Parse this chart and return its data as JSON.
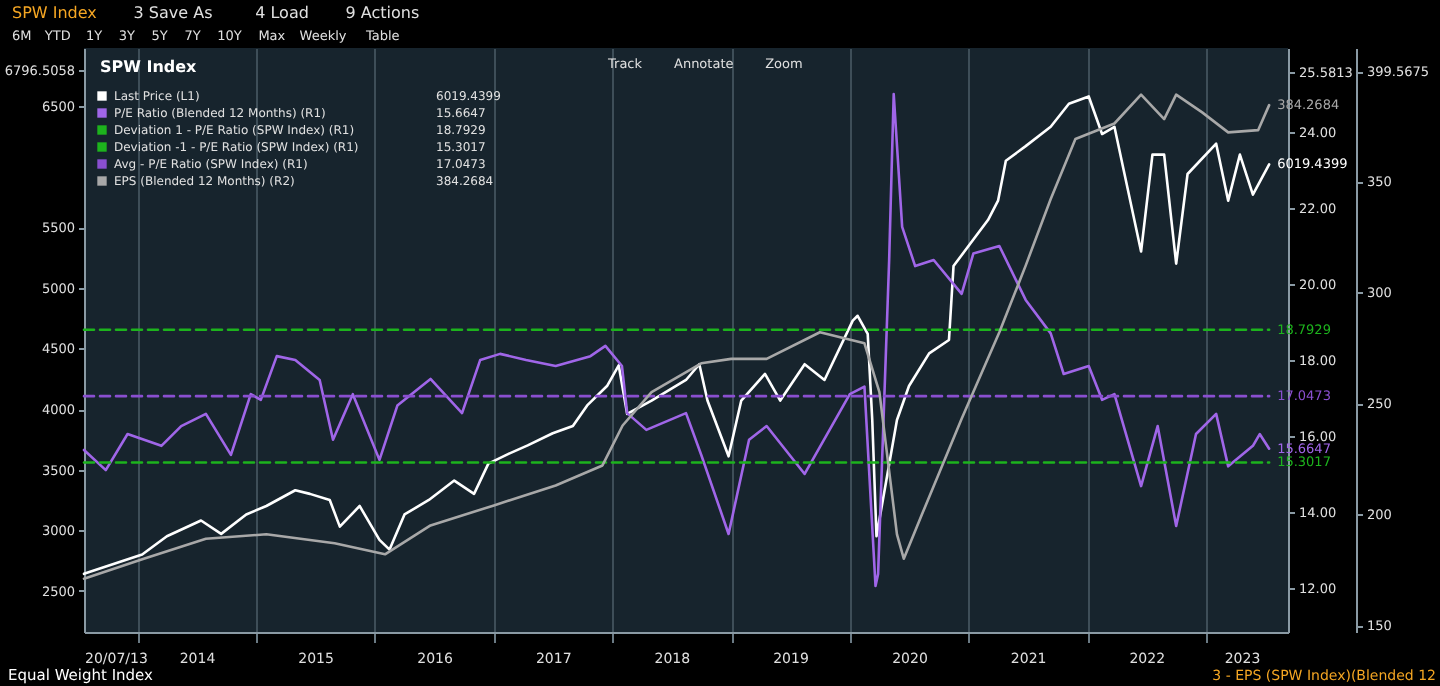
{
  "chart_data": {
    "type": "line",
    "title": "SPW Index",
    "annotations": [
      "SPW Index",
      "3 Save As",
      "4 Load",
      "9 Actions",
      "6M",
      "YTD",
      "1Y",
      "3Y",
      "5Y",
      "7Y",
      "10Y",
      "Max",
      "Weekly",
      "Table",
      "Track",
      "Annotate",
      "Zoom",
      "Equal Weight Index",
      "3 - EPS (SPW Index)(Blended 12"
    ],
    "xlim": [
      "2013-07-20",
      "2023-09-10"
    ],
    "xticks": [
      {
        "value": "2013-07-20",
        "label": "20/07/13"
      },
      {
        "value": "2014-01-01",
        "label": null
      },
      {
        "value": "2014-07-01",
        "label": "2014"
      },
      {
        "value": "2015-01-01",
        "label": null
      },
      {
        "value": "2015-07-01",
        "label": "2015"
      },
      {
        "value": "2016-01-01",
        "label": null
      },
      {
        "value": "2016-07-01",
        "label": "2016"
      },
      {
        "value": "2017-01-01",
        "label": null
      },
      {
        "value": "2017-07-01",
        "label": "2017"
      },
      {
        "value": "2018-01-01",
        "label": null
      },
      {
        "value": "2018-07-01",
        "label": "2018"
      },
      {
        "value": "2019-01-01",
        "label": null
      },
      {
        "value": "2019-07-01",
        "label": "2019"
      },
      {
        "value": "2020-01-01",
        "label": null
      },
      {
        "value": "2020-07-01",
        "label": "2020"
      },
      {
        "value": "2021-01-01",
        "label": null
      },
      {
        "value": "2021-07-01",
        "label": "2021"
      },
      {
        "value": "2022-01-01",
        "label": null
      },
      {
        "value": "2022-07-01",
        "label": "2022"
      },
      {
        "value": "2023-01-01",
        "label": null
      },
      {
        "value": "2023-04-20",
        "label": "2023"
      }
    ],
    "ylim": [
      2160,
      6980
    ],
    "yticks": [
      2500,
      3000,
      3500,
      4000,
      4500,
      5000,
      5500,
      6500,
      6796.5058
    ],
    "y2lim": [
      10.84,
      26.21
    ],
    "y2ticks": [
      {
        "value": 12,
        "label": "12.00"
      },
      {
        "value": 14,
        "label": "14.00"
      },
      {
        "value": 16,
        "label": "16.00"
      },
      {
        "value": 18,
        "label": "18.00"
      },
      {
        "value": 20,
        "label": "20.00"
      },
      {
        "value": 22,
        "label": "22.00"
      },
      {
        "value": 24,
        "label": "24.00"
      },
      25.5813
    ],
    "y3lim": [
      147,
      410
    ],
    "y3ticks": [
      150,
      200,
      250,
      300,
      350,
      399.5675
    ],
    "grid": "x",
    "legend": "top left",
    "series": [
      {
        "name": "Last Price (L1)",
        "color": "#ffffff",
        "x": [
          "2013-07-20",
          "2014-01-15",
          "2014-04-01",
          "2014-07-15",
          "2014-09-15",
          "2014-12-01",
          "2015-02-01",
          "2015-05-01",
          "2015-06-15",
          "2015-08-15",
          "2015-09-15",
          "2015-11-15",
          "2016-01-15",
          "2016-02-15",
          "2016-04-01",
          "2016-06-15",
          "2016-09-01",
          "2016-11-01",
          "2016-12-15",
          "2017-02-15",
          "2017-04-15",
          "2017-07-01",
          "2017-09-01",
          "2017-10-15",
          "2017-12-15",
          "2018-01-20",
          "2018-02-15",
          "2018-05-01",
          "2018-08-15",
          "2018-09-25",
          "2018-10-20",
          "2018-12-24",
          "2019-02-01",
          "2019-04-15",
          "2019-06-01",
          "2019-08-15",
          "2019-10-15",
          "2020-01-10",
          "2020-01-25",
          "2020-02-25",
          "2020-03-10",
          "2020-03-23",
          "2020-05-25",
          "2020-07-01",
          "2020-09-01",
          "2020-11-01",
          "2020-11-15",
          "2021-01-15",
          "2021-03-01",
          "2021-04-01",
          "2021-04-25",
          "2021-06-25",
          "2021-09-10",
          "2021-11-05",
          "2022-01-05",
          "2022-02-15",
          "2022-03-25",
          "2022-06-15",
          "2022-07-20",
          "2022-08-25",
          "2022-10-01",
          "2022-11-05",
          "2023-02-01",
          "2023-03-10",
          "2023-04-15",
          "2023-05-25",
          "2023-07-14"
        ],
        "values": [
          2640,
          2800,
          2950,
          3080,
          2970,
          3130,
          3200,
          3330,
          3300,
          3250,
          3030,
          3200,
          2920,
          2840,
          3130,
          3250,
          3410,
          3300,
          3550,
          3630,
          3700,
          3800,
          3860,
          4030,
          4190,
          4360,
          3960,
          4070,
          4240,
          4370,
          4070,
          3610,
          4070,
          4290,
          4070,
          4370,
          4240,
          4730,
          4770,
          4620,
          3910,
          2950,
          3910,
          4190,
          4460,
          4570,
          5180,
          5400,
          5560,
          5720,
          6050,
          6170,
          6330,
          6520,
          6580,
          6270,
          6330,
          5300,
          6100,
          6100,
          5200,
          5940,
          6190,
          5720,
          6100,
          5770,
          6019.4399
        ],
        "value_labels": [
          null,
          null,
          null,
          null,
          null,
          null,
          null,
          null,
          null,
          null,
          null,
          null,
          null,
          null,
          null,
          null,
          null,
          null,
          null,
          null,
          null,
          null,
          null,
          null,
          null,
          null,
          null,
          null,
          null,
          null,
          null,
          null,
          null,
          null,
          null,
          null,
          null,
          null,
          null,
          null,
          null,
          null,
          null,
          null,
          null,
          null,
          null,
          null,
          null,
          null,
          null,
          null,
          null,
          null,
          null,
          null,
          null,
          null,
          null,
          null,
          null,
          null,
          null,
          null,
          null,
          null,
          "6019.4399"
        ]
      },
      {
        "name": "P/E Ratio (Blended 12 Months) (R1)",
        "color": "#a066e8",
        "axis": "y2",
        "x": [
          "2013-07-20",
          "2013-09-25",
          "2013-12-01",
          "2014-03-15",
          "2014-05-15",
          "2014-07-30",
          "2014-10-15",
          "2014-12-15",
          "2015-01-15",
          "2015-03-05",
          "2015-05-01",
          "2015-07-15",
          "2015-08-25",
          "2015-10-25",
          "2016-01-15",
          "2016-03-10",
          "2016-06-20",
          "2016-09-25",
          "2016-11-20",
          "2017-01-20",
          "2017-04-10",
          "2017-07-10",
          "2017-10-25",
          "2017-12-10",
          "2018-01-30",
          "2018-02-15",
          "2018-04-15",
          "2018-08-15",
          "2018-10-01",
          "2018-12-24",
          "2019-02-25",
          "2019-04-20",
          "2019-08-15",
          "2020-01-01",
          "2020-02-15",
          "2020-03-20",
          "2020-03-28",
          "2020-05-01",
          "2020-05-15",
          "2020-06-10",
          "2020-07-20",
          "2020-09-15",
          "2020-12-10",
          "2021-01-15",
          "2021-04-05",
          "2021-06-25",
          "2021-09-10",
          "2021-10-20",
          "2022-01-05",
          "2022-02-15",
          "2022-03-25",
          "2022-06-15",
          "2022-08-05",
          "2022-10-01",
          "2022-12-01",
          "2023-02-01",
          "2023-03-10",
          "2023-05-25",
          "2023-06-15",
          "2023-07-14"
        ],
        "values": [
          15.63,
          15.1,
          16.05,
          15.74,
          16.26,
          16.58,
          15.5,
          17.1,
          16.95,
          18.1,
          18.0,
          17.47,
          15.9,
          17.1,
          15.37,
          16.8,
          17.5,
          16.6,
          18.0,
          18.16,
          18.0,
          17.84,
          18.1,
          18.37,
          17.84,
          16.6,
          16.16,
          16.6,
          15.5,
          13.42,
          15.9,
          16.26,
          15.0,
          17.1,
          17.3,
          12.05,
          12.37,
          20.63,
          25.0,
          21.5,
          20.47,
          20.63,
          19.74,
          20.8,
          21.0,
          19.58,
          18.7,
          17.63,
          17.84,
          16.95,
          17.1,
          14.68,
          16.26,
          13.63,
          16.05,
          16.58,
          15.2,
          15.74,
          16.05,
          15.6647
        ],
        "value_labels": [
          null,
          null,
          null,
          null,
          null,
          null,
          null,
          null,
          null,
          null,
          null,
          null,
          null,
          null,
          null,
          null,
          null,
          null,
          null,
          null,
          null,
          null,
          null,
          null,
          null,
          null,
          null,
          null,
          null,
          null,
          null,
          null,
          null,
          null,
          null,
          null,
          null,
          null,
          null,
          null,
          null,
          null,
          null,
          null,
          null,
          null,
          null,
          null,
          null,
          null,
          null,
          null,
          null,
          null,
          null,
          null,
          null,
          null,
          null,
          "15.6647"
        ]
      },
      {
        "name": "Deviation 1 - P/E Ratio (SPW Index) (R1)",
        "color": "#1db31d",
        "axis": "y2",
        "line_style": "dashed",
        "x": [
          "2013-07-20",
          "2023-07-14"
        ],
        "values": [
          18.7929,
          18.7929
        ],
        "value_labels": [
          null,
          "18.7929"
        ]
      },
      {
        "name": "Deviation -1 - P/E Ratio (SPW Index) (R1)",
        "color": "#1db31d",
        "axis": "y2",
        "line_style": "dashed",
        "x": [
          "2013-07-20",
          "2023-07-14"
        ],
        "values": [
          15.3017,
          15.3017
        ],
        "value_labels": [
          null,
          "15.3017"
        ]
      },
      {
        "name": "Avg - P/E Ratio (SPW Index) (R1)",
        "color": "#8a4fd0",
        "axis": "y2",
        "line_style": "dashed",
        "x": [
          "2013-07-20",
          "2023-07-14"
        ],
        "values": [
          17.0473,
          17.0473
        ],
        "value_labels": [
          null,
          "17.0473"
        ]
      },
      {
        "name": "EPS (Blended 12 Months) (R2)",
        "color": "#a8a8a8",
        "axis": "y3",
        "x": [
          "2013-07-20",
          "2014-01-20",
          "2014-07-30",
          "2015-02-01",
          "2015-08-30",
          "2016-02-01",
          "2016-06-20",
          "2017-01-01",
          "2017-07-10",
          "2017-12-01",
          "2018-02-01",
          "2018-05-01",
          "2018-10-01",
          "2019-01-01",
          "2019-04-20",
          "2019-10-01",
          "2020-02-15",
          "2020-04-01",
          "2020-05-25",
          "2020-06-15",
          "2020-08-10",
          "2020-12-10",
          "2021-04-05",
          "2021-06-25",
          "2021-09-10",
          "2021-11-25",
          "2022-03-25",
          "2022-06-15",
          "2022-08-25",
          "2022-10-01",
          "2022-12-20",
          "2023-03-10",
          "2023-06-10",
          "2023-07-14"
        ],
        "values": [
          171,
          180,
          189,
          191,
          187,
          182,
          195,
          204,
          213,
          222,
          240,
          255,
          268,
          270,
          270,
          282,
          277,
          255,
          191,
          180,
          200,
          243,
          282,
          312,
          342,
          369,
          376,
          389,
          378,
          389,
          381,
          372,
          373,
          384.2684
        ],
        "value_labels": [
          null,
          null,
          null,
          null,
          null,
          null,
          null,
          null,
          null,
          null,
          null,
          null,
          null,
          null,
          null,
          null,
          null,
          null,
          null,
          null,
          null,
          null,
          null,
          null,
          null,
          null,
          null,
          null,
          null,
          null,
          null,
          null,
          null,
          "384.2684"
        ]
      }
    ]
  }
}
